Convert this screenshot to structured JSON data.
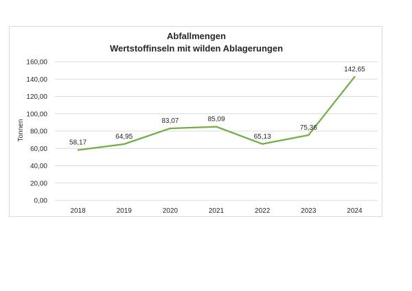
{
  "chart_data": {
    "type": "line",
    "title": "Abfallmengen",
    "subtitle": "Wertstoffinseln mit wilden Ablagerungen",
    "xlabel": "",
    "ylabel": "Tonnen",
    "categories": [
      "2018",
      "2019",
      "2020",
      "2021",
      "2022",
      "2023",
      "2024"
    ],
    "series": [
      {
        "values": [
          58.17,
          64.95,
          83.07,
          85.09,
          65.13,
          75.36,
          142.65
        ],
        "data_labels": [
          "58,17",
          "64,95",
          "83,07",
          "85,09",
          "65,13",
          "75,36",
          "142,65"
        ],
        "color": "#70ad47"
      }
    ],
    "ylim": [
      0,
      160
    ],
    "yticks": [
      0,
      20,
      40,
      60,
      80,
      100,
      120,
      140,
      160
    ],
    "ytick_labels": [
      "0,00",
      "20,00",
      "40,00",
      "60,00",
      "80,00",
      "100,00",
      "120,00",
      "140,00",
      "160,00"
    ],
    "grid": true,
    "legend": "none",
    "gridline_color": "#d9d9d9"
  }
}
